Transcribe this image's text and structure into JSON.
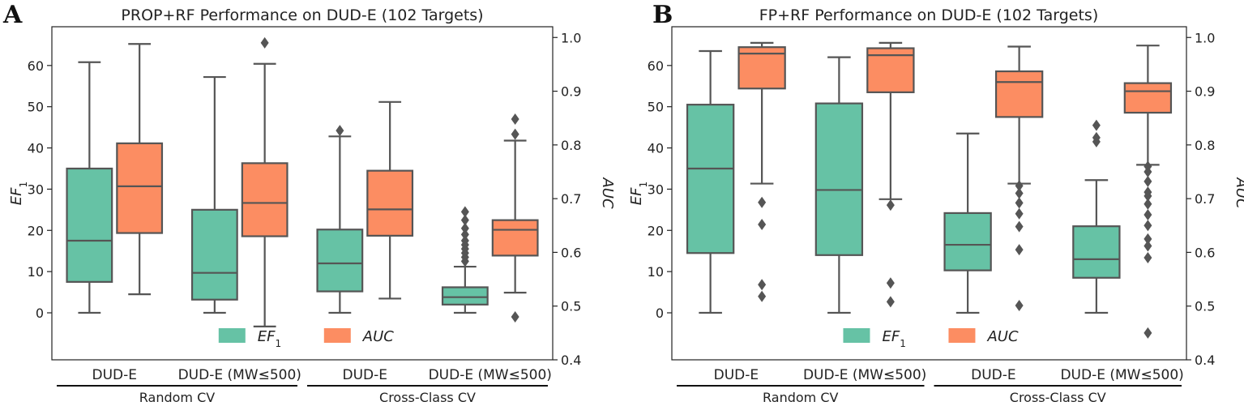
{
  "chart_data": [
    {
      "type": "box",
      "panel_letter": "A",
      "title": "PROP+RF Performance on DUD-E (102 Targets)",
      "ylabel_left": "EF",
      "ylabel_left_sub": "1",
      "ylabel_right": "AUC",
      "ylim_left": [
        -11.4,
        69.4
      ],
      "ylim_right": [
        0.4,
        1.02
      ],
      "yticks_left": [
        "0",
        "10",
        "20",
        "30",
        "40",
        "50",
        "60"
      ],
      "yticks_right": [
        "0.4",
        "0.5",
        "0.6",
        "0.7",
        "0.8",
        "0.9",
        "1.0"
      ],
      "categories": [
        "DUD-E",
        "DUD-E (MW≤500)",
        "DUD-E",
        "DUD-E (MW≤500)"
      ],
      "groups": [
        "Random CV",
        "Cross-Class CV"
      ],
      "legend": {
        "position": "bottom-center",
        "entries": [
          "EF1",
          "AUC"
        ],
        "ef_label": "EF",
        "ef_sub": "1",
        "auc_label": "AUC"
      },
      "series": [
        {
          "name": "EF1",
          "axis": "left",
          "color": "#66c2a5",
          "boxes": [
            {
              "whislo": 0,
              "q1": 7.5,
              "med": 17.5,
              "q3": 35,
              "whishi": 60.8,
              "fliers": []
            },
            {
              "whislo": 0,
              "q1": 3.2,
              "med": 9.7,
              "q3": 25,
              "whishi": 57.2,
              "fliers": []
            },
            {
              "whislo": 0,
              "q1": 5.2,
              "med": 12,
              "q3": 20.2,
              "whishi": 42.8,
              "fliers": [
                44.2
              ]
            },
            {
              "whislo": 0,
              "q1": 2,
              "med": 3.8,
              "q3": 6.2,
              "whishi": 11.2,
              "fliers": [
                12.5,
                13.5,
                14.5,
                15.5,
                16.5,
                17.5,
                19,
                20.5,
                22.5,
                24.5
              ]
            }
          ]
        },
        {
          "name": "AUC",
          "axis": "right",
          "color": "#fc8d62",
          "boxes": [
            {
              "whislo": 0.522,
              "q1": 0.636,
              "med": 0.723,
              "q3": 0.803,
              "whishi": 0.988,
              "fliers": []
            },
            {
              "whislo": 0.462,
              "q1": 0.63,
              "med": 0.692,
              "q3": 0.766,
              "whishi": 0.951,
              "fliers": [
                0.99
              ]
            },
            {
              "whislo": 0.514,
              "q1": 0.631,
              "med": 0.68,
              "q3": 0.752,
              "whishi": 0.88,
              "fliers": []
            },
            {
              "whislo": 0.525,
              "q1": 0.594,
              "med": 0.642,
              "q3": 0.66,
              "whishi": 0.808,
              "fliers": [
                0.48,
                0.82,
                0.848
              ]
            }
          ]
        }
      ]
    },
    {
      "type": "box",
      "panel_letter": "B",
      "title": "FP+RF Performance on DUD-E (102 Targets)",
      "ylabel_left": "EF",
      "ylabel_left_sub": "1",
      "ylabel_right": "AUC",
      "ylim_left": [
        -11.4,
        69.4
      ],
      "ylim_right": [
        0.4,
        1.02
      ],
      "yticks_left": [
        "0",
        "10",
        "20",
        "30",
        "40",
        "50",
        "60"
      ],
      "yticks_right": [
        "0.4",
        "0.5",
        "0.6",
        "0.7",
        "0.8",
        "0.9",
        "1.0"
      ],
      "categories": [
        "DUD-E",
        "DUD-E (MW≤500)",
        "DUD-E",
        "DUD-E (MW≤500)"
      ],
      "groups": [
        "Random CV",
        "Cross-Class CV"
      ],
      "legend": {
        "position": "bottom-center",
        "entries": [
          "EF1",
          "AUC"
        ],
        "ef_label": "EF",
        "ef_sub": "1",
        "auc_label": "AUC"
      },
      "series": [
        {
          "name": "EF1",
          "axis": "left",
          "color": "#66c2a5",
          "boxes": [
            {
              "whislo": 0,
              "q1": 14.5,
              "med": 35,
              "q3": 50.5,
              "whishi": 63.5,
              "fliers": []
            },
            {
              "whislo": 0,
              "q1": 14,
              "med": 29.8,
              "q3": 50.8,
              "whishi": 62,
              "fliers": []
            },
            {
              "whislo": 0,
              "q1": 10.3,
              "med": 16.5,
              "q3": 24.2,
              "whishi": 43.5,
              "fliers": []
            },
            {
              "whislo": 0,
              "q1": 8.5,
              "med": 13,
              "q3": 21,
              "whishi": 32.2,
              "fliers": [
                41.5,
                42.5,
                45.5
              ]
            }
          ]
        },
        {
          "name": "AUC",
          "axis": "right",
          "color": "#fc8d62",
          "boxes": [
            {
              "whislo": 0.728,
              "q1": 0.905,
              "med": 0.97,
              "q3": 0.982,
              "whishi": 0.99,
              "fliers": [
                0.518,
                0.54,
                0.652,
                0.693
              ]
            },
            {
              "whislo": 0.699,
              "q1": 0.898,
              "med": 0.967,
              "q3": 0.98,
              "whishi": 0.99,
              "fliers": [
                0.508,
                0.543,
                0.688
              ]
            },
            {
              "whislo": 0.728,
              "q1": 0.852,
              "med": 0.917,
              "q3": 0.937,
              "whishi": 0.983,
              "fliers": [
                0.501,
                0.605,
                0.648,
                0.672,
                0.692,
                0.71,
                0.724
              ]
            },
            {
              "whislo": 0.763,
              "q1": 0.86,
              "med": 0.9,
              "q3": 0.915,
              "whishi": 0.985,
              "fliers": [
                0.45,
                0.59,
                0.612,
                0.625,
                0.65,
                0.67,
                0.69,
                0.705,
                0.712,
                0.732,
                0.75,
                0.76
              ]
            }
          ]
        }
      ]
    }
  ]
}
